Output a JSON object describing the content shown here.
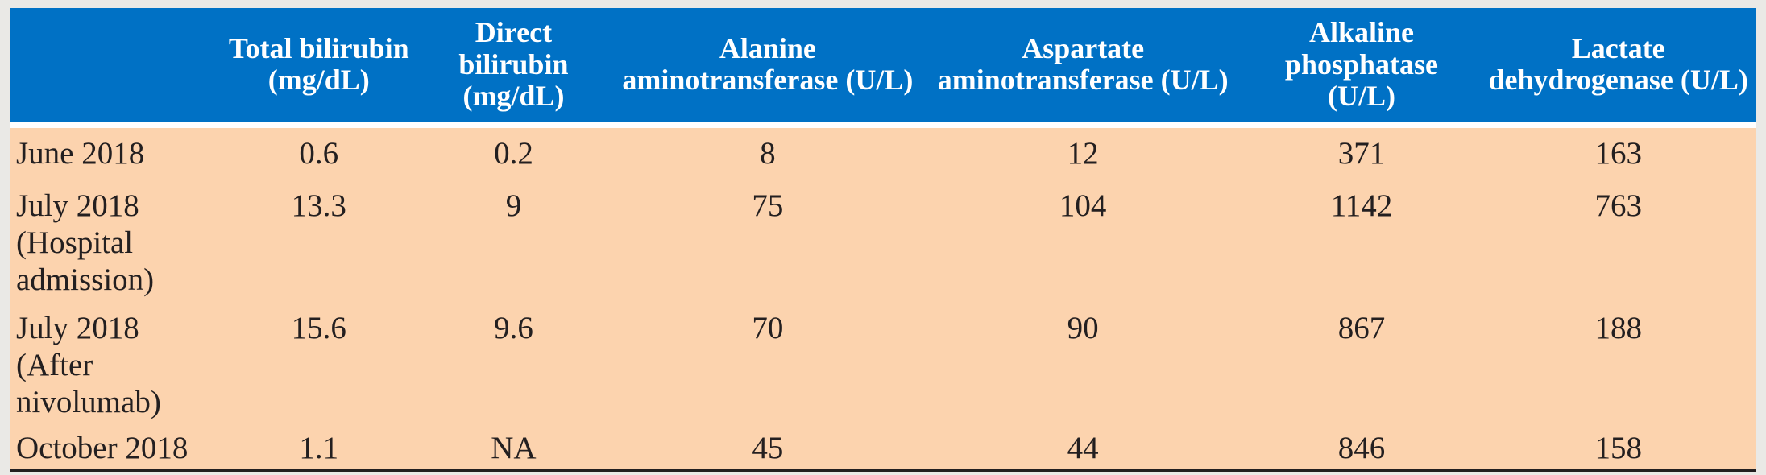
{
  "colors": {
    "header_background": "#0071c5",
    "header_text": "#ffffff",
    "body_background": "#fcd3ae",
    "body_text": "#231f20",
    "page_background": "#eae9e6",
    "bottom_rule": "#231f20"
  },
  "table": {
    "headers": {
      "corner": "",
      "total_bilirubin": "Total bilirubin (mg/dL)",
      "direct_bilirubin": "Direct bilirubin (mg/dL)",
      "alt": "Alanine aminotransferase (U/L)",
      "ast": "Aspartate aminotransferase (U/L)",
      "alp": "Alkaline phosphatase (U/L)",
      "ldh": "Lactate dehydrogenase (U/L)"
    },
    "rows": [
      {
        "label": "June 2018",
        "values": [
          "0.6",
          "0.2",
          "8",
          "12",
          "371",
          "163"
        ]
      },
      {
        "label": "July 2018 (Hospital admission)",
        "values": [
          "13.3",
          "9",
          "75",
          "104",
          "1142",
          "763"
        ]
      },
      {
        "label": "July 2018 (After nivolumab)",
        "values": [
          "15.6",
          "9.6",
          "70",
          "90",
          "867",
          "188"
        ]
      },
      {
        "label": "October 2018",
        "values": [
          "1.1",
          "NA",
          "45",
          "44",
          "846",
          "158"
        ]
      }
    ]
  }
}
